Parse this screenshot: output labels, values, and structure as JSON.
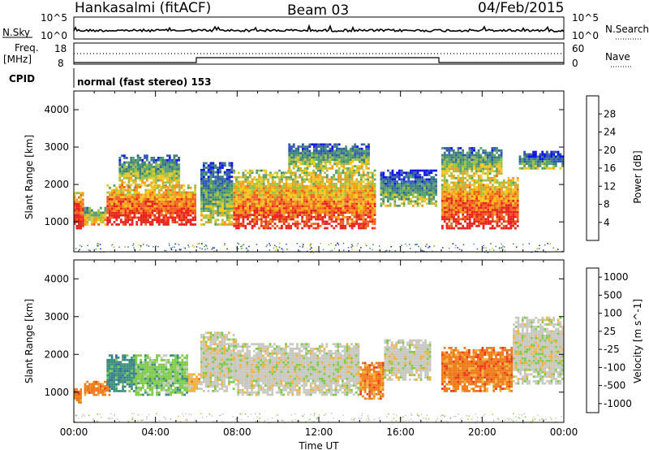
{
  "header": {
    "radar": "Hankasalmi (fitACF)",
    "beam": "Beam 03",
    "date": "04/Feb/2015"
  },
  "top_panels": {
    "nsky_label": "N.Sky",
    "nsearch_label": "N.Search",
    "nsky_ticks": [
      "10^5",
      "10^0"
    ],
    "nsearch_ticks": [
      "10^5",
      "10^0"
    ],
    "freq_label_line1": "Freq.",
    "freq_label_line2": "[MHz]",
    "freq_ticks": [
      "18",
      "8"
    ],
    "nave_label": "Nave",
    "nave_ticks": [
      "60",
      "0"
    ],
    "cpid_label": "CPID",
    "cpid_text": "normal (fast stereo) 153"
  },
  "colors": {
    "power": [
      "#1010ee",
      "#2f55b4",
      "#3c7f7a",
      "#56a06a",
      "#9ebf40",
      "#f2c61c",
      "#f39a1b",
      "#f0601a",
      "#e8221b"
    ],
    "velocity": [
      "#2a4fa8",
      "#2f6f9a",
      "#3c8f7a",
      "#7ecb4a",
      "#c8c8c0",
      "#f3b23a",
      "#ef7a1a",
      "#ec3a1b"
    ]
  },
  "chart_data": [
    {
      "type": "heatmap",
      "name": "power",
      "ylabel": "Slant Range [km]",
      "ylim": [
        200,
        4500
      ],
      "yticks": [
        1000,
        2000,
        3000,
        4000
      ],
      "xlim": [
        0,
        24
      ],
      "colorbar": {
        "label": "Power [dB]",
        "range": [
          0,
          32
        ],
        "ticks": [
          4,
          8,
          12,
          16,
          20,
          24,
          28
        ]
      },
      "regions": [
        {
          "t0": 0.0,
          "t1": 0.5,
          "r0": 800,
          "r1": 1800,
          "level": 0.85
        },
        {
          "t0": 0.5,
          "t1": 1.6,
          "r0": 900,
          "r1": 1400,
          "level": 0.5
        },
        {
          "t0": 1.6,
          "t1": 6.0,
          "r0": 900,
          "r1": 2000,
          "level": 0.8
        },
        {
          "t0": 2.2,
          "t1": 5.2,
          "r0": 1900,
          "r1": 2800,
          "level": 0.4
        },
        {
          "t0": 6.2,
          "t1": 7.8,
          "r0": 900,
          "r1": 2600,
          "level": 0.35
        },
        {
          "t0": 7.8,
          "t1": 14.8,
          "r0": 800,
          "r1": 2400,
          "level": 0.72
        },
        {
          "t0": 10.5,
          "t1": 14.5,
          "r0": 2400,
          "r1": 3100,
          "level": 0.35
        },
        {
          "t0": 15.0,
          "t1": 17.8,
          "r0": 1400,
          "r1": 2400,
          "level": 0.3
        },
        {
          "t0": 18.0,
          "t1": 21.8,
          "r0": 800,
          "r1": 2200,
          "level": 0.78
        },
        {
          "t0": 18.0,
          "t1": 21.0,
          "r0": 2200,
          "r1": 3000,
          "level": 0.4
        },
        {
          "t0": 21.8,
          "t1": 24.0,
          "r0": 2400,
          "r1": 2900,
          "level": 0.25
        }
      ]
    },
    {
      "type": "heatmap",
      "name": "velocity",
      "xlabel": "Time UT",
      "ylabel": "Slant Range [km]",
      "ylim": [
        200,
        4500
      ],
      "yticks": [
        1000,
        2000,
        3000,
        4000
      ],
      "xlim": [
        0,
        24
      ],
      "xticks": [
        "00:00",
        "04:00",
        "08:00",
        "12:00",
        "16:00",
        "20:00",
        "00:00"
      ],
      "colorbar": {
        "label": "Velocity [m s^-1]",
        "ticks": [
          "1000",
          "500",
          "100",
          "25",
          "-25",
          "-100",
          "-500",
          "-1000"
        ]
      },
      "regions": [
        {
          "t0": 0.0,
          "t1": 0.4,
          "r0": 700,
          "r1": 1100,
          "class": 6
        },
        {
          "t0": 0.5,
          "t1": 1.8,
          "r0": 900,
          "r1": 1300,
          "class": 6
        },
        {
          "t0": 1.6,
          "t1": 3.0,
          "r0": 1000,
          "r1": 2000,
          "class": 2
        },
        {
          "t0": 3.0,
          "t1": 5.6,
          "r0": 900,
          "r1": 2000,
          "class": 3
        },
        {
          "t0": 5.6,
          "t1": 6.2,
          "r0": 1000,
          "r1": 1500,
          "class": 5
        },
        {
          "t0": 6.2,
          "t1": 8.0,
          "r0": 1000,
          "r1": 2600,
          "class": 4
        },
        {
          "t0": 8.0,
          "t1": 14.0,
          "r0": 900,
          "r1": 2300,
          "class": 4
        },
        {
          "t0": 14.0,
          "t1": 15.2,
          "r0": 800,
          "r1": 1800,
          "class": 6
        },
        {
          "t0": 15.2,
          "t1": 17.5,
          "r0": 1300,
          "r1": 2400,
          "class": 4
        },
        {
          "t0": 18.0,
          "t1": 21.5,
          "r0": 1000,
          "r1": 2200,
          "class": 6
        },
        {
          "t0": 21.5,
          "t1": 24.0,
          "r0": 1200,
          "r1": 3000,
          "class": 4
        }
      ]
    }
  ]
}
